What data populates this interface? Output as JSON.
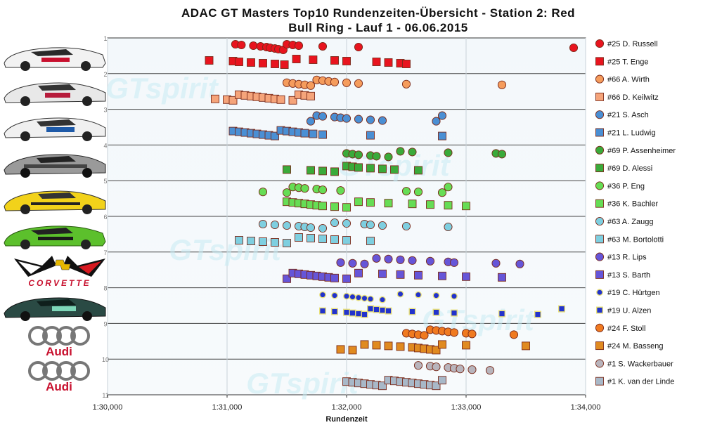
{
  "chart_data": {
    "type": "scatter",
    "title_line1": "ADAC GT Masters Top10 Rundenzeiten-Übersicht - Station 2: Red",
    "title_line2": "Bull Ring - Lauf 1 - 06.06.2015",
    "xlabel": "Rundenzeit",
    "xlim": [
      90.0,
      94.0
    ],
    "xticks": [
      {
        "v": 90,
        "label": "1:30,000"
      },
      {
        "v": 91,
        "label": "1:31,000"
      },
      {
        "v": 92,
        "label": "1:32,000"
      },
      {
        "v": 93,
        "label": "1:33,000"
      },
      {
        "v": 94,
        "label": "1:34,000"
      }
    ],
    "row_labels": [
      "1",
      "2",
      "3",
      "4",
      "5",
      "6",
      "7",
      "8",
      "9",
      "10",
      "11"
    ],
    "watermark": "GTspirit",
    "brand_labels": {
      "corvette": "CORVETTE",
      "audi": "Audi"
    },
    "series": [
      {
        "name": "#25 D. Russell",
        "color": "#e8141e",
        "marker": "circle",
        "row": 1,
        "sub": 0,
        "values": [
          91.07,
          91.12,
          91.22,
          91.28,
          91.33,
          91.36,
          91.4,
          91.43,
          91.47,
          91.5,
          91.55,
          91.6,
          91.8,
          92.1,
          93.9
        ]
      },
      {
        "name": "#25 T. Enge",
        "color": "#e8141e",
        "marker": "square",
        "row": 1,
        "sub": 1,
        "values": [
          90.85,
          91.05,
          91.1,
          91.2,
          91.3,
          91.4,
          91.48,
          91.58,
          91.72,
          91.9,
          92.0,
          92.25,
          92.35,
          92.45,
          92.5
        ]
      },
      {
        "name": "#66 A. Wirth",
        "color": "#f59c5c",
        "marker": "circle",
        "row": 2,
        "sub": 0,
        "values": [
          91.5,
          91.55,
          91.6,
          91.65,
          91.7,
          91.75,
          91.8,
          91.85,
          91.9,
          92.0,
          92.1,
          92.5,
          93.3
        ]
      },
      {
        "name": "#66 D. Keilwitz",
        "color": "#f5a47a",
        "marker": "square",
        "row": 2,
        "sub": 1,
        "values": [
          90.9,
          91.0,
          91.05,
          91.1,
          91.15,
          91.2,
          91.25,
          91.3,
          91.35,
          91.4,
          91.45,
          91.55,
          91.6,
          91.65,
          91.7
        ]
      },
      {
        "name": "#21 S. Asch",
        "color": "#4a8fd4",
        "marker": "circle",
        "row": 3,
        "sub": 0,
        "values": [
          91.7,
          91.75,
          91.8,
          91.9,
          91.95,
          92.0,
          92.1,
          92.2,
          92.3,
          92.75,
          92.8
        ]
      },
      {
        "name": "#21 L. Ludwig",
        "color": "#4a8fd4",
        "marker": "square",
        "row": 3,
        "sub": 1,
        "values": [
          91.05,
          91.1,
          91.15,
          91.2,
          91.25,
          91.3,
          91.35,
          91.4,
          91.45,
          91.5,
          91.55,
          91.6,
          91.65,
          91.72,
          91.8,
          92.2,
          92.8
        ]
      },
      {
        "name": "#69 P. Assenheimer",
        "color": "#3aaa3a",
        "marker": "circle",
        "row": 4,
        "sub": 0,
        "values": [
          92.0,
          92.05,
          92.1,
          92.2,
          92.25,
          92.35,
          92.45,
          92.55,
          92.85,
          93.25,
          93.3
        ]
      },
      {
        "name": "#69 D. Alessi",
        "color": "#3aaa3a",
        "marker": "square",
        "row": 4,
        "sub": 1,
        "values": [
          91.5,
          91.7,
          91.8,
          91.9,
          92.0,
          92.05,
          92.1,
          92.2,
          92.3,
          92.4,
          92.6
        ]
      },
      {
        "name": "#36 P. Eng",
        "color": "#66dd55",
        "marker": "circle",
        "row": 5,
        "sub": 0,
        "values": [
          91.3,
          91.5,
          91.55,
          91.6,
          91.65,
          91.75,
          91.8,
          91.95,
          92.5,
          92.6,
          92.8,
          92.85
        ]
      },
      {
        "name": "#36 K. Bachler",
        "color": "#66dd55",
        "marker": "square",
        "row": 5,
        "sub": 1,
        "values": [
          91.5,
          91.55,
          91.6,
          91.65,
          91.7,
          91.75,
          91.8,
          91.9,
          92.0,
          92.1,
          92.2,
          92.35,
          92.55,
          92.7,
          92.85,
          93.0
        ]
      },
      {
        "name": "#63 A. Zaugg",
        "color": "#7ecfe0",
        "marker": "circle",
        "row": 6,
        "sub": 0,
        "values": [
          91.3,
          91.4,
          91.5,
          91.6,
          91.65,
          91.7,
          91.8,
          91.9,
          92.0,
          92.15,
          92.2,
          92.3,
          92.5,
          92.85
        ]
      },
      {
        "name": "#63 M. Bortolotti",
        "color": "#7ecfe0",
        "marker": "square",
        "row": 6,
        "sub": 1,
        "values": [
          91.1,
          91.2,
          91.3,
          91.4,
          91.5,
          91.6,
          91.7,
          91.8,
          91.9,
          92.0,
          92.2
        ]
      },
      {
        "name": "#13 R. Lips",
        "color": "#6655d8",
        "marker": "circle",
        "row": 7,
        "sub": 0,
        "values": [
          91.95,
          92.05,
          92.15,
          92.25,
          92.35,
          92.45,
          92.55,
          92.7,
          92.85,
          92.9,
          93.25,
          93.45
        ]
      },
      {
        "name": "#13 S. Barth",
        "color": "#6655d8",
        "marker": "square",
        "row": 7,
        "sub": 1,
        "values": [
          91.5,
          91.55,
          91.6,
          91.65,
          91.7,
          91.75,
          91.8,
          91.85,
          91.9,
          92.0,
          92.1,
          92.3,
          92.45,
          92.6,
          92.8,
          93.0,
          93.3
        ]
      },
      {
        "name": "#19 C. Hürtgen",
        "color": "#2233cc",
        "marker": "circle-small",
        "row": 8,
        "sub": 0,
        "values": [
          91.8,
          91.9,
          92.0,
          92.05,
          92.1,
          92.15,
          92.2,
          92.3,
          92.45,
          92.6,
          92.75,
          92.9
        ]
      },
      {
        "name": "#19 U. Alzen",
        "color": "#2233cc",
        "marker": "square-small",
        "row": 8,
        "sub": 1,
        "values": [
          91.8,
          91.9,
          92.0,
          92.05,
          92.1,
          92.15,
          92.2,
          92.25,
          92.3,
          92.35,
          92.55,
          92.75,
          92.9,
          93.3,
          93.6,
          93.8
        ]
      },
      {
        "name": "#24 F. Stoll",
        "color": "#f07a20",
        "marker": "circle",
        "row": 9,
        "sub": 0,
        "values": [
          92.5,
          92.55,
          92.6,
          92.65,
          92.7,
          92.75,
          92.8,
          92.85,
          92.9,
          93.0,
          93.05,
          93.4
        ]
      },
      {
        "name": "#24 M. Basseng",
        "color": "#e08a20",
        "marker": "square",
        "row": 9,
        "sub": 1,
        "values": [
          91.95,
          92.05,
          92.15,
          92.25,
          92.35,
          92.45,
          92.55,
          92.6,
          92.65,
          92.7,
          92.75,
          92.8,
          93.0,
          93.5
        ]
      },
      {
        "name": "#1 S. Wackerbauer",
        "color": "#b8b4bc",
        "marker": "circle",
        "row": 10,
        "sub": 0,
        "values": [
          92.6,
          92.7,
          92.75,
          92.85,
          92.9,
          92.95,
          93.05,
          93.2
        ]
      },
      {
        "name": "#1 K. van der Linde",
        "color": "#a8b8c8",
        "marker": "square",
        "row": 10,
        "sub": 1,
        "values": [
          92.0,
          92.05,
          92.1,
          92.15,
          92.2,
          92.25,
          92.3,
          92.35,
          92.4,
          92.45,
          92.5,
          92.55,
          92.6,
          92.65,
          92.7,
          92.75,
          92.8
        ]
      }
    ]
  }
}
